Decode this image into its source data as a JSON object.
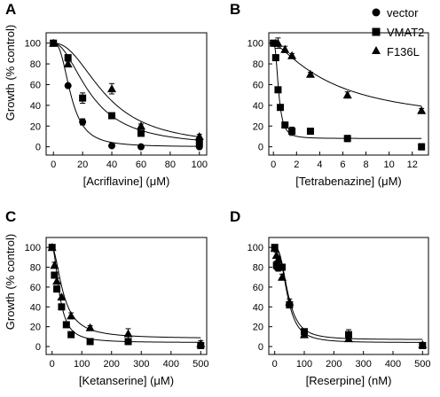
{
  "figure": {
    "y_axis_title": "Growth (% control)",
    "legend": [
      {
        "name": "vector",
        "marker": "circle"
      },
      {
        "name": "VMAT2",
        "marker": "square"
      },
      {
        "name": "F136L",
        "marker": "triangle"
      }
    ]
  },
  "chart_data": [
    {
      "type": "scatter",
      "panel": "A",
      "xlabel": "[Acriflavine] (μM)",
      "ylabel": "Growth (% control)",
      "xlim": [
        -5,
        105
      ],
      "ylim": [
        -8,
        110
      ],
      "xticks": [
        0,
        20,
        40,
        60,
        80,
        100
      ],
      "yticks": [
        0,
        20,
        40,
        60,
        80,
        100
      ],
      "grid": false,
      "series": [
        {
          "name": "vector",
          "marker": "circle",
          "points": [
            {
              "x": 0,
              "y": 100
            },
            {
              "x": 10,
              "y": 59
            },
            {
              "x": 20,
              "y": 24
            },
            {
              "x": 40,
              "y": 1
            },
            {
              "x": 60,
              "y": 0
            },
            {
              "x": 100,
              "y": 0
            }
          ],
          "errors": [
            1,
            1,
            3,
            1,
            1,
            1
          ],
          "fit": {
            "top": 100,
            "bottom": 0,
            "ec50": 12,
            "hill": 2.6
          }
        },
        {
          "name": "VMAT2",
          "marker": "square",
          "points": [
            {
              "x": 0,
              "y": 100
            },
            {
              "x": 10,
              "y": 86
            },
            {
              "x": 20,
              "y": 47
            },
            {
              "x": 40,
              "y": 30
            },
            {
              "x": 60,
              "y": 13
            },
            {
              "x": 100,
              "y": 4
            }
          ],
          "errors": [
            1,
            2,
            5,
            2,
            2,
            1
          ],
          "fit": {
            "top": 100,
            "bottom": 0,
            "ec50": 26,
            "hill": 2.0
          }
        },
        {
          "name": "F136L",
          "marker": "triangle",
          "points": [
            {
              "x": 0,
              "y": 100
            },
            {
              "x": 10,
              "y": 80
            },
            {
              "x": 40,
              "y": 56
            },
            {
              "x": 60,
              "y": 20
            },
            {
              "x": 100,
              "y": 10
            }
          ],
          "errors": [
            1,
            2,
            5,
            2,
            2
          ],
          "fit": {
            "top": 100,
            "bottom": 0,
            "ec50": 36,
            "hill": 2.2
          }
        }
      ]
    },
    {
      "type": "scatter",
      "panel": "B",
      "xlabel": "[Tetrabenazine] (μM)",
      "ylabel": "",
      "xlim": [
        -0.4,
        13.4
      ],
      "ylim": [
        -8,
        110
      ],
      "xticks": [
        0,
        2,
        4,
        6,
        8,
        10,
        12
      ],
      "yticks": [
        0,
        20,
        40,
        60,
        80,
        100
      ],
      "grid": false,
      "series": [
        {
          "name": "VMAT2",
          "marker": "square",
          "points": [
            {
              "x": 0,
              "y": 100
            },
            {
              "x": 0.2,
              "y": 86
            },
            {
              "x": 0.4,
              "y": 55
            },
            {
              "x": 0.6,
              "y": 38
            },
            {
              "x": 1,
              "y": 21
            },
            {
              "x": 1.6,
              "y": 15
            },
            {
              "x": 3.2,
              "y": 15
            },
            {
              "x": 6.4,
              "y": 8
            },
            {
              "x": 12.8,
              "y": 0
            }
          ],
          "errors": [
            2,
            2,
            2,
            2,
            2,
            4,
            1,
            3,
            3
          ],
          "fit": {
            "top": 100,
            "bottom": 8,
            "ec50": 0.45,
            "hill": 2.5
          }
        },
        {
          "name": "F136L",
          "marker": "triangle",
          "points": [
            {
              "x": 0.2,
              "y": 100
            },
            {
              "x": 0.4,
              "y": 100
            },
            {
              "x": 1,
              "y": 94
            },
            {
              "x": 1.6,
              "y": 88
            },
            {
              "x": 3.2,
              "y": 70
            },
            {
              "x": 6.4,
              "y": 50
            },
            {
              "x": 12.8,
              "y": 35
            }
          ],
          "errors": [
            2,
            5,
            3,
            2,
            2,
            3,
            2
          ],
          "fit": {
            "top": 100,
            "bottom": 20,
            "ec50": 5.3,
            "hill": 1.3
          }
        }
      ]
    },
    {
      "type": "scatter",
      "panel": "C",
      "xlabel": "[Ketanserine] (μM)",
      "ylabel": "Growth (% control)",
      "xlim": [
        -20,
        520
      ],
      "ylim": [
        -8,
        110
      ],
      "xticks": [
        0,
        100,
        200,
        300,
        400,
        500
      ],
      "yticks": [
        0,
        20,
        40,
        60,
        80,
        100
      ],
      "grid": false,
      "series": [
        {
          "name": "VMAT2",
          "marker": "square",
          "points": [
            {
              "x": 0,
              "y": 100
            },
            {
              "x": 8,
              "y": 72
            },
            {
              "x": 16,
              "y": 58
            },
            {
              "x": 32,
              "y": 40
            },
            {
              "x": 48,
              "y": 22
            },
            {
              "x": 64,
              "y": 12
            },
            {
              "x": 128,
              "y": 5
            },
            {
              "x": 256,
              "y": 5
            },
            {
              "x": 500,
              "y": 1
            }
          ],
          "errors": [
            2,
            3,
            3,
            2,
            2,
            2,
            2,
            2,
            2
          ],
          "fit": {
            "top": 100,
            "bottom": 4,
            "ec50": 26,
            "hill": 2.0
          }
        },
        {
          "name": "F136L",
          "marker": "triangle",
          "points": [
            {
              "x": 0,
              "y": 100
            },
            {
              "x": 8,
              "y": 82
            },
            {
              "x": 16,
              "y": 66
            },
            {
              "x": 32,
              "y": 50
            },
            {
              "x": 64,
              "y": 31
            },
            {
              "x": 128,
              "y": 19
            },
            {
              "x": 256,
              "y": 13
            },
            {
              "x": 500,
              "y": 3
            }
          ],
          "errors": [
            2,
            3,
            3,
            2,
            3,
            2,
            5,
            3
          ],
          "fit": {
            "top": 100,
            "bottom": 8,
            "ec50": 38,
            "hill": 1.8
          }
        }
      ]
    },
    {
      "type": "scatter",
      "panel": "D",
      "xlabel": "[Reserpine] (nM)",
      "ylabel": "",
      "xlim": [
        -20,
        520
      ],
      "ylim": [
        -8,
        110
      ],
      "xticks": [
        0,
        100,
        200,
        300,
        400,
        500
      ],
      "yticks": [
        0,
        20,
        40,
        60,
        80,
        100
      ],
      "grid": false,
      "series": [
        {
          "name": "VMAT2",
          "marker": "square",
          "points": [
            {
              "x": 0,
              "y": 100
            },
            {
              "x": 6,
              "y": 82
            },
            {
              "x": 12,
              "y": 80
            },
            {
              "x": 25,
              "y": 80
            },
            {
              "x": 50,
              "y": 42
            },
            {
              "x": 100,
              "y": 15
            },
            {
              "x": 250,
              "y": 12
            },
            {
              "x": 500,
              "y": 1
            }
          ],
          "errors": [
            2,
            4,
            4,
            3,
            3,
            2,
            5,
            2
          ],
          "fit": {
            "top": 100,
            "bottom": 4,
            "ec50": 43,
            "hill": 2.6
          }
        },
        {
          "name": "F136L",
          "marker": "triangle",
          "points": [
            {
              "x": 0,
              "y": 99
            },
            {
              "x": 6,
              "y": 92
            },
            {
              "x": 12,
              "y": 88
            },
            {
              "x": 25,
              "y": 70
            },
            {
              "x": 50,
              "y": 45
            },
            {
              "x": 100,
              "y": 12
            },
            {
              "x": 250,
              "y": 8
            },
            {
              "x": 500,
              "y": 2
            }
          ],
          "errors": [
            2,
            3,
            3,
            3,
            3,
            2,
            2,
            2
          ],
          "fit": {
            "top": 100,
            "bottom": 7,
            "ec50": 45,
            "hill": 2.6
          }
        }
      ]
    }
  ]
}
